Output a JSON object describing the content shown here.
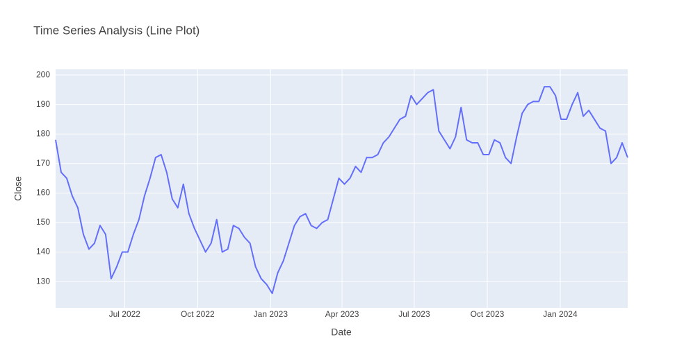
{
  "chart_data": {
    "type": "line",
    "title": "Time Series Analysis (Line Plot)",
    "x_label": "Date",
    "y_label": "Close",
    "x": [
      "2022-04-05",
      "2022-04-12",
      "2022-04-19",
      "2022-04-26",
      "2022-05-03",
      "2022-05-10",
      "2022-05-17",
      "2022-05-24",
      "2022-05-31",
      "2022-06-07",
      "2022-06-14",
      "2022-06-21",
      "2022-06-28",
      "2022-07-05",
      "2022-07-12",
      "2022-07-19",
      "2022-07-26",
      "2022-08-02",
      "2022-08-09",
      "2022-08-16",
      "2022-08-23",
      "2022-08-30",
      "2022-09-06",
      "2022-09-13",
      "2022-09-20",
      "2022-09-27",
      "2022-10-04",
      "2022-10-11",
      "2022-10-18",
      "2022-10-25",
      "2022-11-01",
      "2022-11-08",
      "2022-11-15",
      "2022-11-22",
      "2022-11-29",
      "2022-12-06",
      "2022-12-13",
      "2022-12-20",
      "2022-12-27",
      "2023-01-03",
      "2023-01-10",
      "2023-01-17",
      "2023-01-24",
      "2023-01-31",
      "2023-02-07",
      "2023-02-14",
      "2023-02-21",
      "2023-02-28",
      "2023-03-07",
      "2023-03-14",
      "2023-03-21",
      "2023-03-28",
      "2023-04-04",
      "2023-04-11",
      "2023-04-18",
      "2023-04-25",
      "2023-05-02",
      "2023-05-09",
      "2023-05-16",
      "2023-05-23",
      "2023-05-30",
      "2023-06-06",
      "2023-06-13",
      "2023-06-20",
      "2023-06-27",
      "2023-07-04",
      "2023-07-11",
      "2023-07-18",
      "2023-07-25",
      "2023-08-01",
      "2023-08-08",
      "2023-08-15",
      "2023-08-22",
      "2023-08-29",
      "2023-09-05",
      "2023-09-12",
      "2023-09-19",
      "2023-09-26",
      "2023-10-03",
      "2023-10-10",
      "2023-10-17",
      "2023-10-24",
      "2023-10-31",
      "2023-11-07",
      "2023-11-14",
      "2023-11-21",
      "2023-11-28",
      "2023-12-05",
      "2023-12-12",
      "2023-12-19",
      "2023-12-26",
      "2024-01-02",
      "2024-01-09",
      "2024-01-16",
      "2024-01-23",
      "2024-01-30",
      "2024-02-06",
      "2024-02-13",
      "2024-02-20",
      "2024-02-27",
      "2024-03-05",
      "2024-03-12",
      "2024-03-19",
      "2024-03-26"
    ],
    "series": [
      {
        "name": "Close",
        "color": "#636efa",
        "values": [
          178,
          167,
          165,
          159,
          155,
          146,
          141,
          143,
          149,
          146,
          131,
          135,
          140,
          140,
          146,
          151,
          159,
          165,
          172,
          173,
          167,
          158,
          155,
          163,
          153,
          148,
          144,
          140,
          143,
          151,
          140,
          141,
          149,
          148,
          145,
          143,
          135,
          131,
          129,
          126,
          133,
          137,
          143,
          149,
          152,
          153,
          149,
          148,
          150,
          151,
          158,
          165,
          163,
          165,
          169,
          167,
          172,
          172,
          173,
          177,
          179,
          182,
          185,
          186,
          193,
          190,
          192,
          194,
          195,
          181,
          178,
          175,
          179,
          189,
          178,
          177,
          177,
          173,
          173,
          178,
          177,
          172,
          170,
          179,
          187,
          190,
          191,
          191,
          196,
          196,
          193,
          185,
          185,
          190,
          194,
          186,
          188,
          185,
          182,
          181,
          170,
          172,
          177,
          172
        ]
      }
    ],
    "xlim": [
      "2022-04-05",
      "2024-03-26"
    ],
    "xticks": [
      {
        "value": "2022-07-01",
        "label": "Jul 2022"
      },
      {
        "value": "2022-10-01",
        "label": "Oct 2022"
      },
      {
        "value": "2023-01-01",
        "label": "Jan 2023"
      },
      {
        "value": "2023-04-01",
        "label": "Apr 2023"
      },
      {
        "value": "2023-07-01",
        "label": "Jul 2023"
      },
      {
        "value": "2023-10-01",
        "label": "Oct 2023"
      },
      {
        "value": "2024-01-01",
        "label": "Jan 2024"
      }
    ],
    "ylim": [
      121.1,
      201.9
    ],
    "yticks": [
      130,
      140,
      150,
      160,
      170,
      180,
      190,
      200
    ],
    "grid": true
  }
}
